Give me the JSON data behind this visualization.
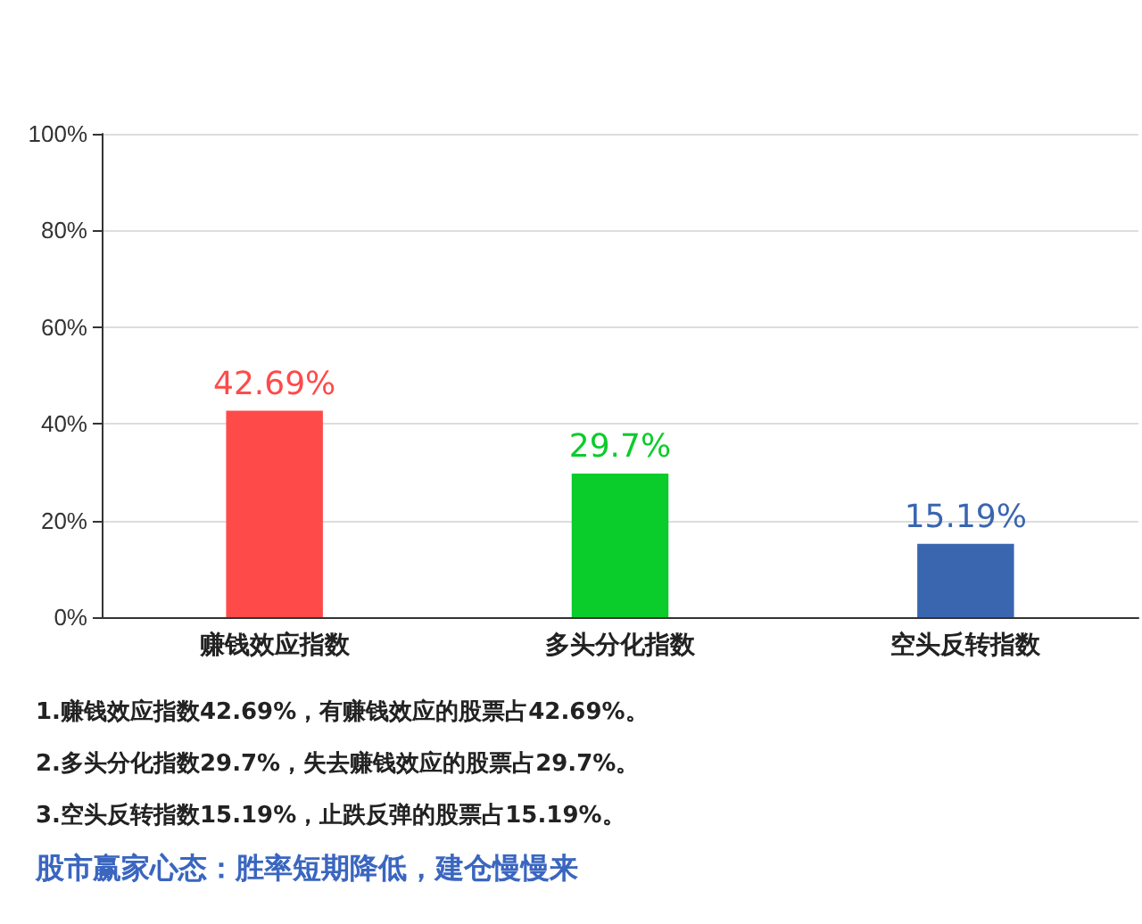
{
  "chart_data": {
    "type": "bar",
    "categories": [
      "赚钱效应指数",
      "多头分化指数",
      "空头反转指数"
    ],
    "values": [
      42.69,
      29.7,
      15.19
    ],
    "colors": [
      "#ff4a4a",
      "#0acc2a",
      "#3a66b0"
    ],
    "value_labels": [
      "42.69%",
      "29.7%",
      "15.19%"
    ],
    "ylim": [
      0,
      100
    ],
    "yticks": [
      {
        "value": 0,
        "label": "0%"
      },
      {
        "value": 20,
        "label": "20%"
      },
      {
        "value": 40,
        "label": "40%"
      },
      {
        "value": 60,
        "label": "60%"
      },
      {
        "value": 80,
        "label": "80%"
      },
      {
        "value": 100,
        "label": "100%"
      }
    ],
    "grid": "y",
    "annotations": [
      "1.赚钱效应指数42.69%，有赚钱效应的股票占42.69%。",
      "2.多头分化指数29.7%，失去赚钱效应的股票占29.7%。",
      "3.空头反转指数15.19%，止跌反弹的股票占15.19%。",
      "股市赢家心态：胜率短期降低，建仓慢慢来"
    ]
  }
}
